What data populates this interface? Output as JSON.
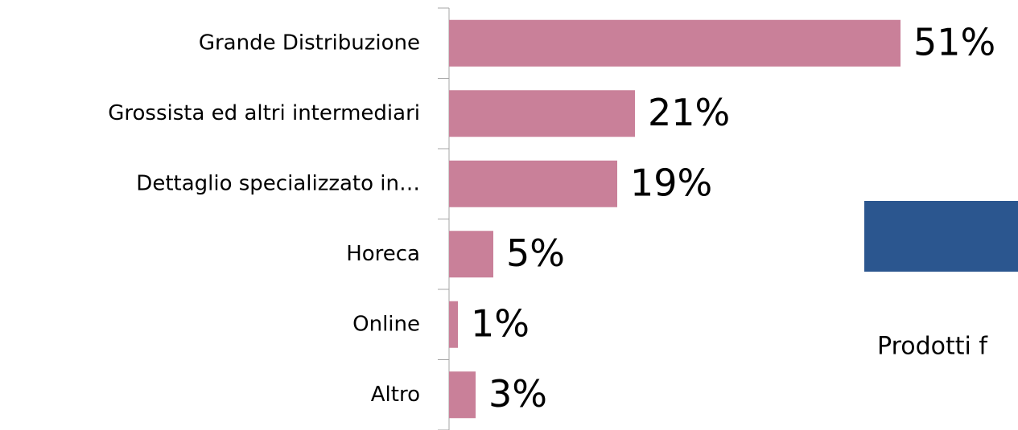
{
  "chart_data": {
    "type": "bar",
    "orientation": "horizontal",
    "categories": [
      "Grande Distribuzione",
      "Grossista ed altri intermediari",
      "Dettaglio specializzato in…",
      "Horeca",
      "Online",
      "Altro"
    ],
    "values": [
      51,
      21,
      19,
      5,
      1,
      3
    ],
    "value_labels": [
      "51%",
      "21%",
      "19%",
      "5%",
      "1%",
      "3%"
    ],
    "color": "#c98099",
    "annotations": [
      "Prodotti f"
    ]
  }
}
